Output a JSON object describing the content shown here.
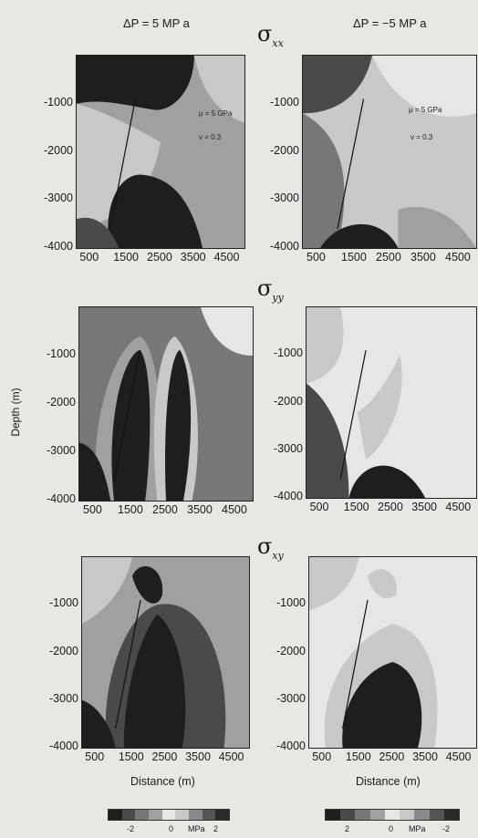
{
  "column_titles": [
    "ΔP = 5 MP a",
    "ΔP = −5 MP a"
  ],
  "section_symbols": [
    {
      "base": "σ",
      "sub": "xx"
    },
    {
      "base": "σ",
      "sub": "yy"
    },
    {
      "base": "σ",
      "sub": "xy"
    }
  ],
  "params": {
    "mu": "μ = 5 GPa",
    "nu": "ν = 0.3"
  },
  "ylabel": "Depth (m)",
  "xlabel": "Distance (m)",
  "y_ticks": [
    "-1000",
    "-2000",
    "-3000",
    "-4000"
  ],
  "x_ticks": [
    "500",
    "1500",
    "2500",
    "3500",
    "4500"
  ],
  "colorbars": [
    {
      "labels": [
        "-2",
        "0",
        "MPa",
        "2"
      ]
    },
    {
      "labels": [
        "2",
        "0",
        "MPa",
        "-2"
      ]
    }
  ],
  "palette": {
    "very_dark": "#1e1e1e",
    "dark": "#4a4a4a",
    "mid_dark": "#777777",
    "mid": "#a0a0a0",
    "light": "#c8c8c8",
    "very_light": "#e6e6e6"
  },
  "chart_data": {
    "type": "heatmap",
    "panels": [
      {
        "row": "σxx",
        "column": "ΔP = 5 MP a",
        "xlim": [
          0,
          5000
        ],
        "ylim": [
          -4000,
          0
        ]
      },
      {
        "row": "σxx",
        "column": "ΔP = -5 MP a",
        "xlim": [
          0,
          5000
        ],
        "ylim": [
          -4000,
          0
        ]
      },
      {
        "row": "σyy",
        "column": "ΔP = 5 MP a",
        "xlim": [
          0,
          5000
        ],
        "ylim": [
          -4000,
          0
        ]
      },
      {
        "row": "σyy",
        "column": "ΔP = -5 MP a",
        "xlim": [
          0,
          5000
        ],
        "ylim": [
          -4000,
          0
        ]
      },
      {
        "row": "σxy",
        "column": "ΔP = 5 MP a",
        "xlim": [
          0,
          5000
        ],
        "ylim": [
          -4000,
          0
        ]
      },
      {
        "row": "σxy",
        "column": "ΔP = -5 MP a",
        "xlim": [
          0,
          5000
        ],
        "ylim": [
          -4000,
          0
        ]
      }
    ],
    "fault_line": {
      "start": [
        1000,
        -3600
      ],
      "end": [
        1750,
        -900
      ]
    },
    "colorbar_range_mpa": [
      -2,
      2
    ]
  }
}
